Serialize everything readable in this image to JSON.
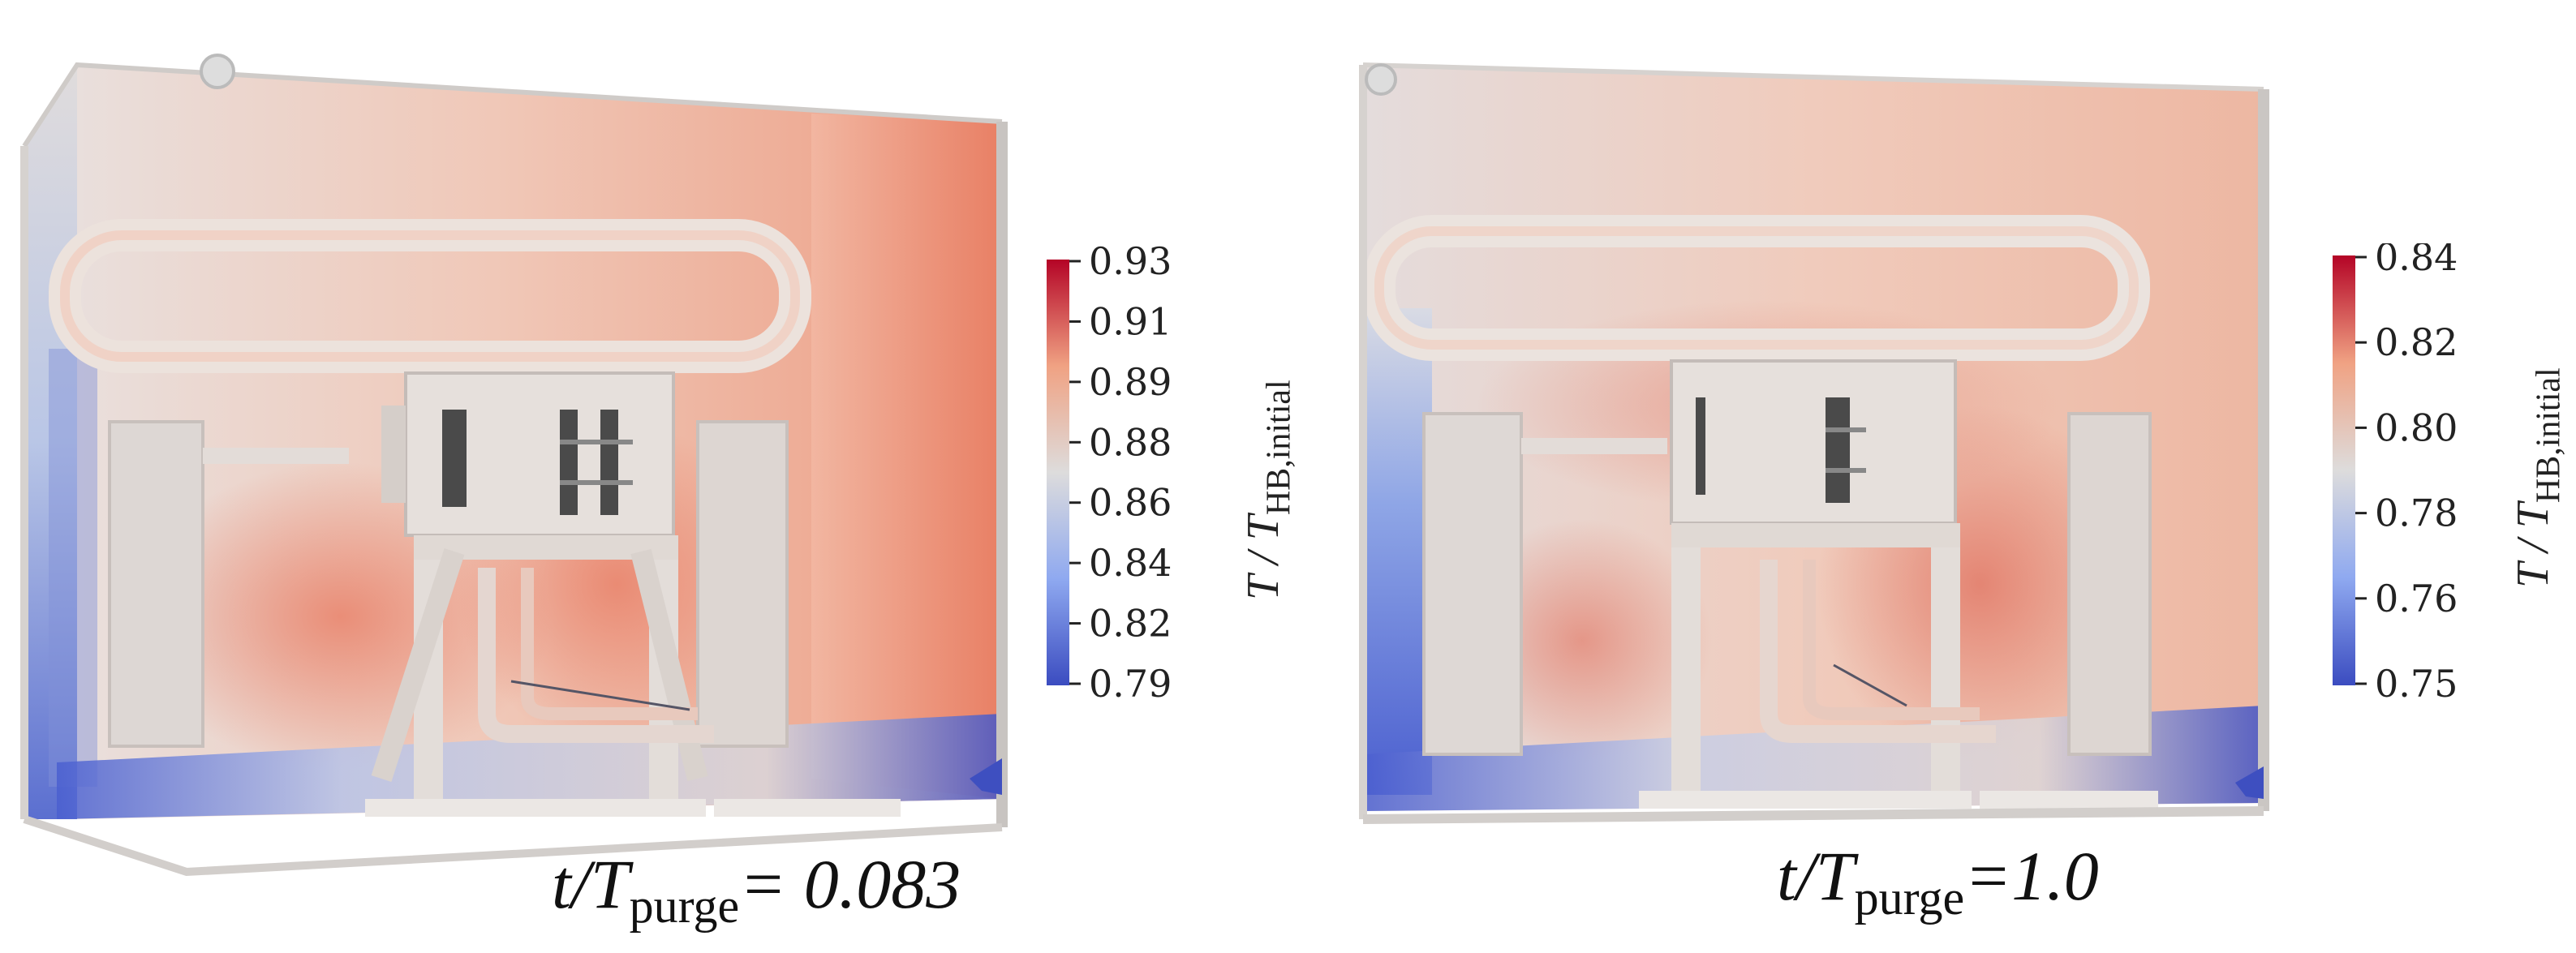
{
  "panels": [
    {
      "caption": {
        "t": "t",
        "T": "T",
        "sub": "purge",
        "eq": "=",
        "value": " 0.083"
      },
      "colorbar": {
        "label_main": "T / T",
        "label_sub": "HB,initial",
        "ticks": [
          "0.93",
          "0.91",
          "0.89",
          "0.88",
          "0.86",
          "0.84",
          "0.82",
          "0.79"
        ]
      }
    },
    {
      "caption": {
        "t": "t",
        "T": "T",
        "sub": "purge",
        "eq": "=",
        "value": "1.0"
      },
      "colorbar": {
        "label_main": "T / T",
        "label_sub": "HB,initial",
        "ticks": [
          "0.84",
          "0.82",
          "0.80",
          "0.78",
          "0.76",
          "0.75"
        ]
      }
    }
  ],
  "colors": {
    "cold": "#3b4cc0",
    "neutral": "#dddcdc",
    "warm": "#e8866a",
    "hot": "#b40426",
    "equipment": "#e6e1dc"
  }
}
